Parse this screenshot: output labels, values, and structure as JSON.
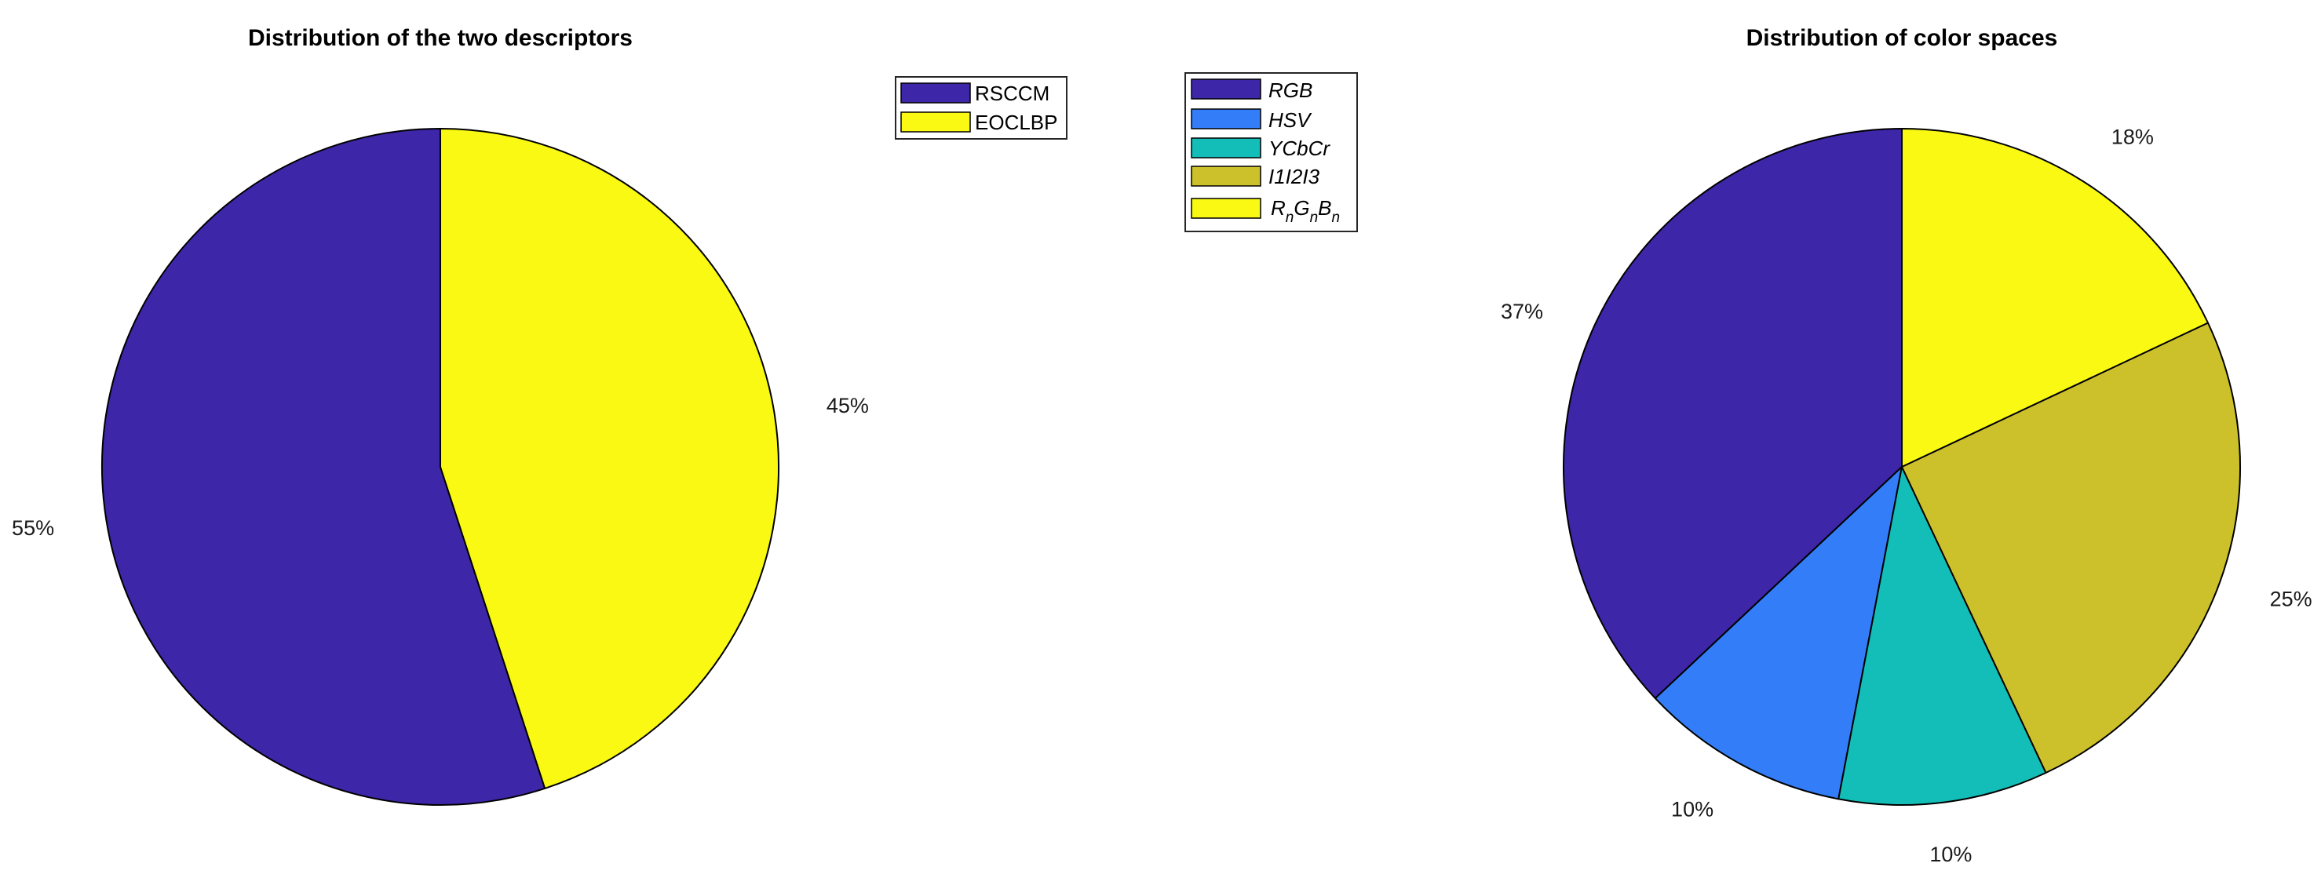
{
  "chart_data": [
    {
      "type": "pie",
      "title": "Distribution of the two descriptors",
      "slices": [
        {
          "label": "RSCCM",
          "value": 55,
          "pct_label": "55%",
          "color": "#3E26A8"
        },
        {
          "label": "EOCLBP",
          "value": 45,
          "pct_label": "45%",
          "color": "#F9F914"
        }
      ],
      "legend": {
        "location": "top-right",
        "entries": [
          "RSCCM",
          "EOCLBP"
        ]
      }
    },
    {
      "type": "pie",
      "title": "Distribution of color spaces",
      "slices": [
        {
          "label": "RGB",
          "value": 37,
          "pct_label": "37%",
          "color": "#3E26A8"
        },
        {
          "label": "HSV",
          "value": 10,
          "pct_label": "10%",
          "color": "#337EF8"
        },
        {
          "label": "YCbCr",
          "value": 10,
          "pct_label": "10%",
          "color": "#14BEB8"
        },
        {
          "label": "I1I2I3",
          "value": 25,
          "pct_label": "25%",
          "color": "#CDC12B"
        },
        {
          "label": "RnGnBn",
          "value": 18,
          "pct_label": "18%",
          "color": "#F9F914"
        }
      ],
      "legend": {
        "location": "top-left",
        "entries": [
          "RGB",
          "HSV",
          "YCbCr",
          "I1I2I3",
          "RnGnBn"
        ],
        "rgbn_parts": {
          "r": "R",
          "g": "G",
          "b": "B",
          "sub": "n"
        }
      }
    }
  ]
}
